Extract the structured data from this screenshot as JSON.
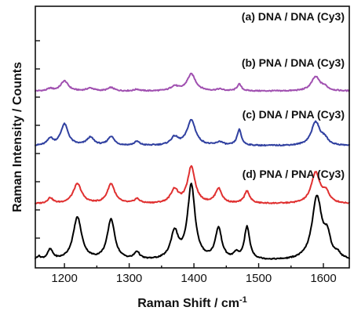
{
  "chart_data": {
    "type": "line",
    "title": "",
    "xlabel": "Raman Shift / cm",
    "xlabel_superscript": "-1",
    "ylabel": "Raman Intensity / Counts",
    "xlim": [
      1155,
      1640
    ],
    "x_ticks": [
      1200,
      1300,
      1400,
      1500,
      1600
    ],
    "x_tick_labels": [
      "1200",
      "1300",
      "1400",
      "1500",
      "1600"
    ],
    "y_ticks_shown": true,
    "y_tick_labels_shown": false,
    "grid": false,
    "legend": "none",
    "series": [
      {
        "name": "(a) DNA / DNA (Cy3)",
        "color": "#a050b0",
        "offset": 3.0,
        "baseline": [
          [
            1155,
            0.05
          ],
          [
            1640,
            0.05
          ]
        ],
        "peaks": [
          {
            "x": 1178,
            "h": 0.04,
            "w": 5
          },
          {
            "x": 1200,
            "h": 0.18,
            "w": 7
          },
          {
            "x": 1240,
            "h": 0.05,
            "w": 7
          },
          {
            "x": 1272,
            "h": 0.06,
            "w": 6
          },
          {
            "x": 1312,
            "h": 0.03,
            "w": 5
          },
          {
            "x": 1370,
            "h": 0.08,
            "w": 7
          },
          {
            "x": 1396,
            "h": 0.3,
            "w": 8
          },
          {
            "x": 1440,
            "h": 0.03,
            "w": 6
          },
          {
            "x": 1470,
            "h": 0.12,
            "w": 4
          },
          {
            "x": 1588,
            "h": 0.25,
            "w": 8
          },
          {
            "x": 1602,
            "h": 0.06,
            "w": 6
          }
        ]
      },
      {
        "name": "(b) PNA / DNA (Cy3)",
        "color": "#3040a0",
        "offset": 2.0,
        "baseline": [
          [
            1155,
            0.08
          ],
          [
            1640,
            0.08
          ]
        ],
        "peaks": [
          {
            "x": 1178,
            "h": 0.12,
            "w": 5
          },
          {
            "x": 1200,
            "h": 0.38,
            "w": 7
          },
          {
            "x": 1240,
            "h": 0.14,
            "w": 7
          },
          {
            "x": 1272,
            "h": 0.16,
            "w": 6
          },
          {
            "x": 1312,
            "h": 0.07,
            "w": 5
          },
          {
            "x": 1370,
            "h": 0.14,
            "w": 7
          },
          {
            "x": 1396,
            "h": 0.45,
            "w": 8
          },
          {
            "x": 1440,
            "h": 0.06,
            "w": 6
          },
          {
            "x": 1470,
            "h": 0.28,
            "w": 4
          },
          {
            "x": 1588,
            "h": 0.42,
            "w": 8
          },
          {
            "x": 1602,
            "h": 0.1,
            "w": 6
          }
        ]
      },
      {
        "name": "(c) DNA / PNA (Cy3)",
        "color": "#e03030",
        "offset": 1.0,
        "baseline": [
          [
            1155,
            0.05
          ],
          [
            1640,
            0.05
          ]
        ],
        "peaks": [
          {
            "x": 1178,
            "h": 0.1,
            "w": 5
          },
          {
            "x": 1220,
            "h": 0.35,
            "w": 8
          },
          {
            "x": 1272,
            "h": 0.35,
            "w": 7
          },
          {
            "x": 1312,
            "h": 0.08,
            "w": 5
          },
          {
            "x": 1370,
            "h": 0.24,
            "w": 7
          },
          {
            "x": 1396,
            "h": 0.65,
            "w": 7
          },
          {
            "x": 1438,
            "h": 0.26,
            "w": 6
          },
          {
            "x": 1482,
            "h": 0.22,
            "w": 5
          },
          {
            "x": 1588,
            "h": 0.55,
            "w": 8
          },
          {
            "x": 1604,
            "h": 0.18,
            "w": 6
          }
        ]
      },
      {
        "name": "(d) PNA / PNA (Cy3)",
        "color": "#000000",
        "offset": 0.0,
        "baseline": [
          [
            1155,
            0.04
          ],
          [
            1640,
            0.04
          ]
        ],
        "peaks": [
          {
            "x": 1160,
            "h": 0.06,
            "w": 4
          },
          {
            "x": 1178,
            "h": 0.18,
            "w": 5
          },
          {
            "x": 1220,
            "h": 0.76,
            "w": 8
          },
          {
            "x": 1272,
            "h": 0.72,
            "w": 7
          },
          {
            "x": 1312,
            "h": 0.13,
            "w": 5
          },
          {
            "x": 1370,
            "h": 0.48,
            "w": 7
          },
          {
            "x": 1396,
            "h": 1.32,
            "w": 7
          },
          {
            "x": 1438,
            "h": 0.55,
            "w": 6
          },
          {
            "x": 1465,
            "h": 0.1,
            "w": 4
          },
          {
            "x": 1482,
            "h": 0.58,
            "w": 5
          },
          {
            "x": 1590,
            "h": 1.12,
            "w": 9
          },
          {
            "x": 1606,
            "h": 0.35,
            "w": 6
          },
          {
            "x": 1622,
            "h": 0.08,
            "w": 5
          }
        ]
      }
    ]
  }
}
